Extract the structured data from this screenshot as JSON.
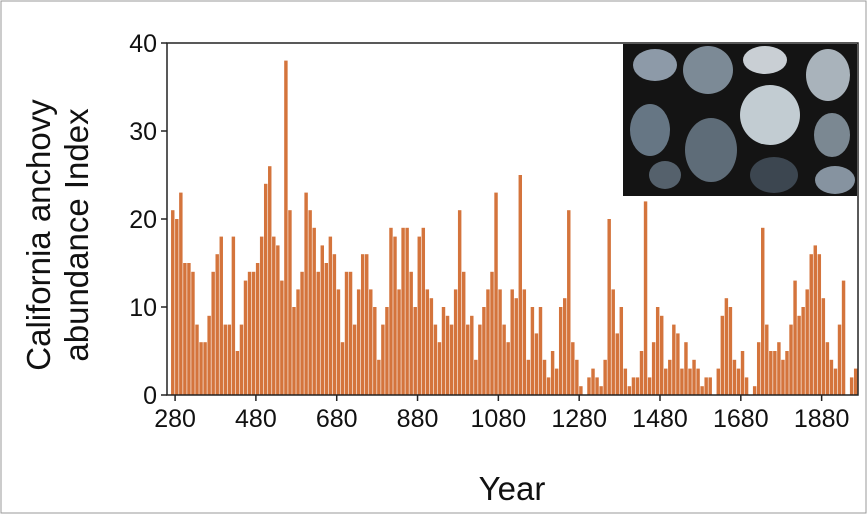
{
  "chart_data": {
    "type": "bar",
    "xlabel": "Year",
    "ylabel": [
      "California anchovy",
      "abundance Index"
    ],
    "color": "#d4743c",
    "bar_width": 10,
    "x": [
      270,
      280,
      290,
      300,
      310,
      320,
      330,
      340,
      350,
      360,
      370,
      380,
      390,
      400,
      410,
      420,
      430,
      440,
      450,
      460,
      470,
      480,
      490,
      500,
      510,
      520,
      530,
      540,
      550,
      560,
      570,
      580,
      590,
      600,
      610,
      620,
      630,
      640,
      650,
      660,
      670,
      680,
      690,
      700,
      710,
      720,
      730,
      740,
      750,
      760,
      770,
      780,
      790,
      800,
      810,
      820,
      830,
      840,
      850,
      860,
      870,
      880,
      890,
      900,
      910,
      920,
      930,
      940,
      950,
      960,
      970,
      980,
      990,
      1000,
      1010,
      1020,
      1030,
      1040,
      1050,
      1060,
      1070,
      1080,
      1090,
      1100,
      1110,
      1120,
      1130,
      1140,
      1150,
      1160,
      1170,
      1180,
      1190,
      1200,
      1210,
      1220,
      1230,
      1240,
      1250,
      1260,
      1270,
      1280,
      1290,
      1300,
      1310,
      1320,
      1330,
      1340,
      1350,
      1360,
      1370,
      1380,
      1390,
      1400,
      1410,
      1420,
      1430,
      1440,
      1450,
      1460,
      1470,
      1480,
      1490,
      1500,
      1510,
      1520,
      1530,
      1540,
      1550,
      1560,
      1570,
      1580,
      1590,
      1600,
      1610,
      1620,
      1630,
      1640,
      1650,
      1660,
      1670,
      1680,
      1690,
      1700,
      1710,
      1720,
      1730,
      1740,
      1750,
      1760,
      1770,
      1780,
      1790,
      1800,
      1810,
      1820,
      1830,
      1840,
      1850,
      1860,
      1870,
      1880,
      1890,
      1900,
      1910,
      1920,
      1930,
      1940,
      1950,
      1960
    ],
    "values": [
      21,
      20,
      23,
      15,
      15,
      14,
      8,
      6,
      6,
      9,
      14,
      16,
      18,
      8,
      8,
      18,
      5,
      8,
      13,
      14,
      14,
      15,
      18,
      24,
      26,
      18,
      17,
      13,
      38,
      21,
      10,
      12,
      14,
      23,
      21,
      19,
      14,
      17,
      15,
      18,
      16,
      12,
      6,
      14,
      14,
      8,
      12,
      16,
      16,
      12,
      10,
      4,
      8,
      10,
      19,
      18,
      12,
      19,
      19,
      14,
      10,
      18,
      19,
      12,
      11,
      8,
      6,
      10,
      9,
      8,
      12,
      21,
      14,
      8,
      9,
      4,
      8,
      10,
      12,
      14,
      23,
      12,
      8,
      6,
      12,
      11,
      25,
      12,
      4,
      10,
      7,
      10,
      4,
      2,
      5,
      3,
      10,
      11,
      21,
      6,
      4,
      1,
      0,
      2,
      3,
      2,
      1,
      4,
      20,
      12,
      7,
      10,
      3,
      1,
      2,
      2,
      5,
      22,
      2,
      6,
      10,
      9,
      3,
      4,
      8,
      7,
      3,
      6,
      3,
      4,
      3,
      1,
      2,
      2,
      0,
      3,
      9,
      11,
      10,
      4,
      3,
      5,
      2,
      0,
      1,
      6,
      19,
      8,
      5,
      5,
      6,
      4,
      5,
      8,
      13,
      9,
      10,
      12,
      16,
      17,
      16,
      11,
      6,
      4,
      3,
      8,
      13,
      0,
      2,
      3
    ],
    "xlim": [
      260,
      1970
    ],
    "xticks": [
      280,
      480,
      680,
      880,
      1080,
      1280,
      1480,
      1680,
      1880
    ],
    "ylim": [
      0,
      40
    ],
    "yticks": [
      0,
      10,
      20,
      30,
      40
    ]
  }
}
